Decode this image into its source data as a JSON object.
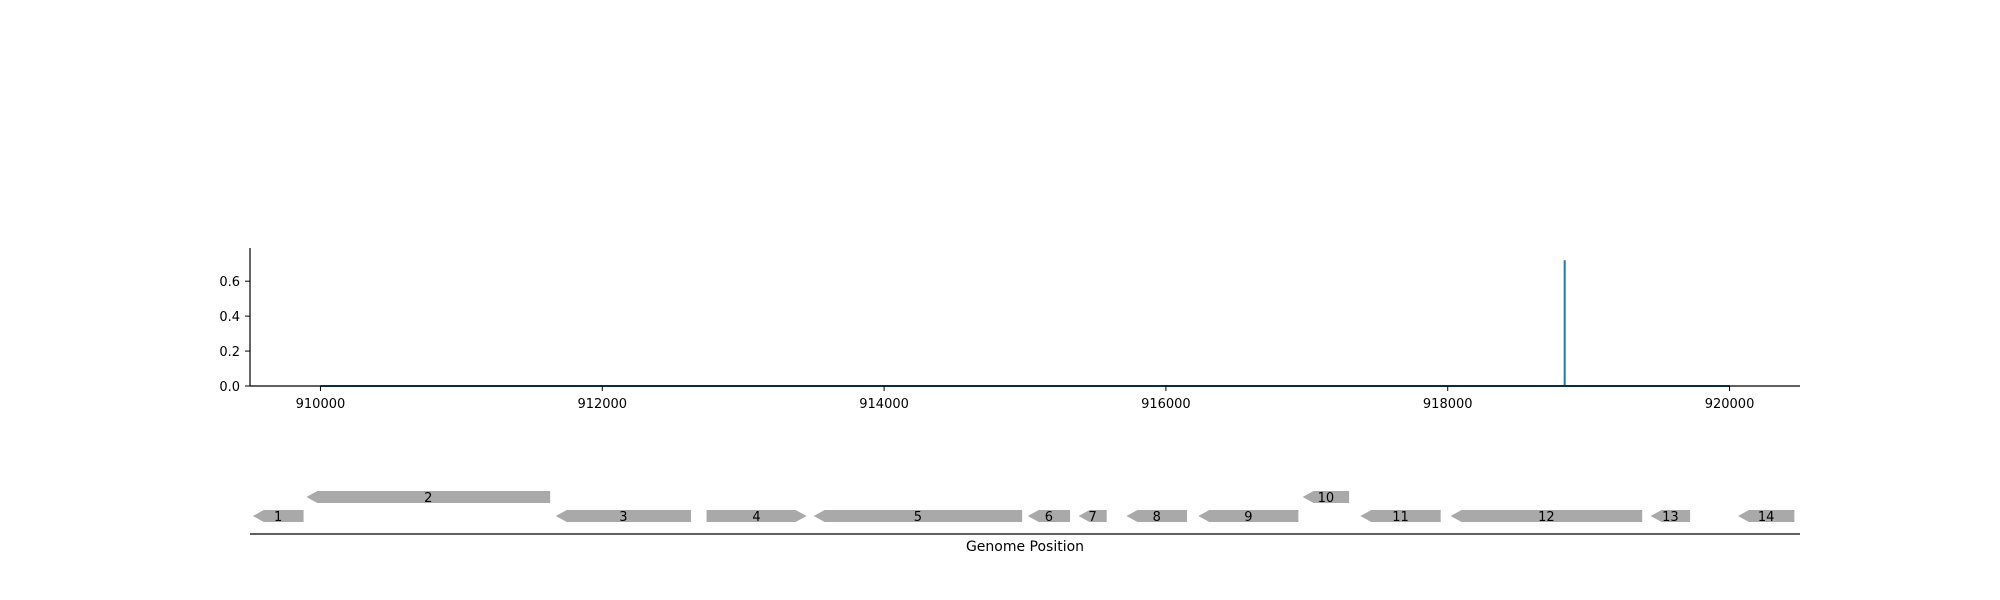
{
  "chart_data": [
    {
      "type": "line",
      "title": "",
      "xlabel": "",
      "ylabel": "",
      "xlim": [
        909500,
        920500
      ],
      "ylim": [
        0,
        0.79
      ],
      "x_ticks": [
        910000,
        912000,
        914000,
        916000,
        918000,
        920000
      ],
      "y_ticks": [
        0.0,
        0.2,
        0.4,
        0.6
      ],
      "x_tick_labels": [
        "910000",
        "912000",
        "914000",
        "916000",
        "918000",
        "920000"
      ],
      "y_tick_labels": [
        "0.0",
        "0.2",
        "0.4",
        "0.6"
      ],
      "series": [
        {
          "color": "#1f77b4",
          "x": [
            910000,
            918830,
            918830,
            918830,
            920000
          ],
          "y": [
            0.0,
            0.0,
            0.72,
            0.0,
            0.0
          ]
        }
      ],
      "grid": false
    },
    {
      "type": "gene-map",
      "title": "",
      "xlabel": "Genome Position",
      "xlim": [
        909500,
        920500
      ],
      "genes": [
        {
          "label": "1",
          "start": 909520,
          "end": 909880,
          "strand": "-",
          "row": 0
        },
        {
          "label": "2",
          "start": 909900,
          "end": 911630,
          "strand": "-",
          "row": 1
        },
        {
          "label": "3",
          "start": 911670,
          "end": 912630,
          "strand": "-",
          "row": 0
        },
        {
          "label": "4",
          "start": 912740,
          "end": 913450,
          "strand": "+",
          "row": 0
        },
        {
          "label": "5",
          "start": 913500,
          "end": 914980,
          "strand": "-",
          "row": 0
        },
        {
          "label": "6",
          "start": 915020,
          "end": 915320,
          "strand": "-",
          "row": 0
        },
        {
          "label": "7",
          "start": 915380,
          "end": 915580,
          "strand": "-",
          "row": 0
        },
        {
          "label": "8",
          "start": 915720,
          "end": 916150,
          "strand": "-",
          "row": 0
        },
        {
          "label": "9",
          "start": 916230,
          "end": 916940,
          "strand": "-",
          "row": 0
        },
        {
          "label": "10",
          "start": 916970,
          "end": 917300,
          "strand": "-",
          "row": 1
        },
        {
          "label": "11",
          "start": 917380,
          "end": 917950,
          "strand": "-",
          "row": 0
        },
        {
          "label": "12",
          "start": 918020,
          "end": 919380,
          "strand": "-",
          "row": 0
        },
        {
          "label": "13",
          "start": 919440,
          "end": 919720,
          "strand": "-",
          "row": 0
        },
        {
          "label": "14",
          "start": 920060,
          "end": 920460,
          "strand": "-",
          "row": 0
        }
      ],
      "gene_color": "#a9a9a9"
    }
  ]
}
